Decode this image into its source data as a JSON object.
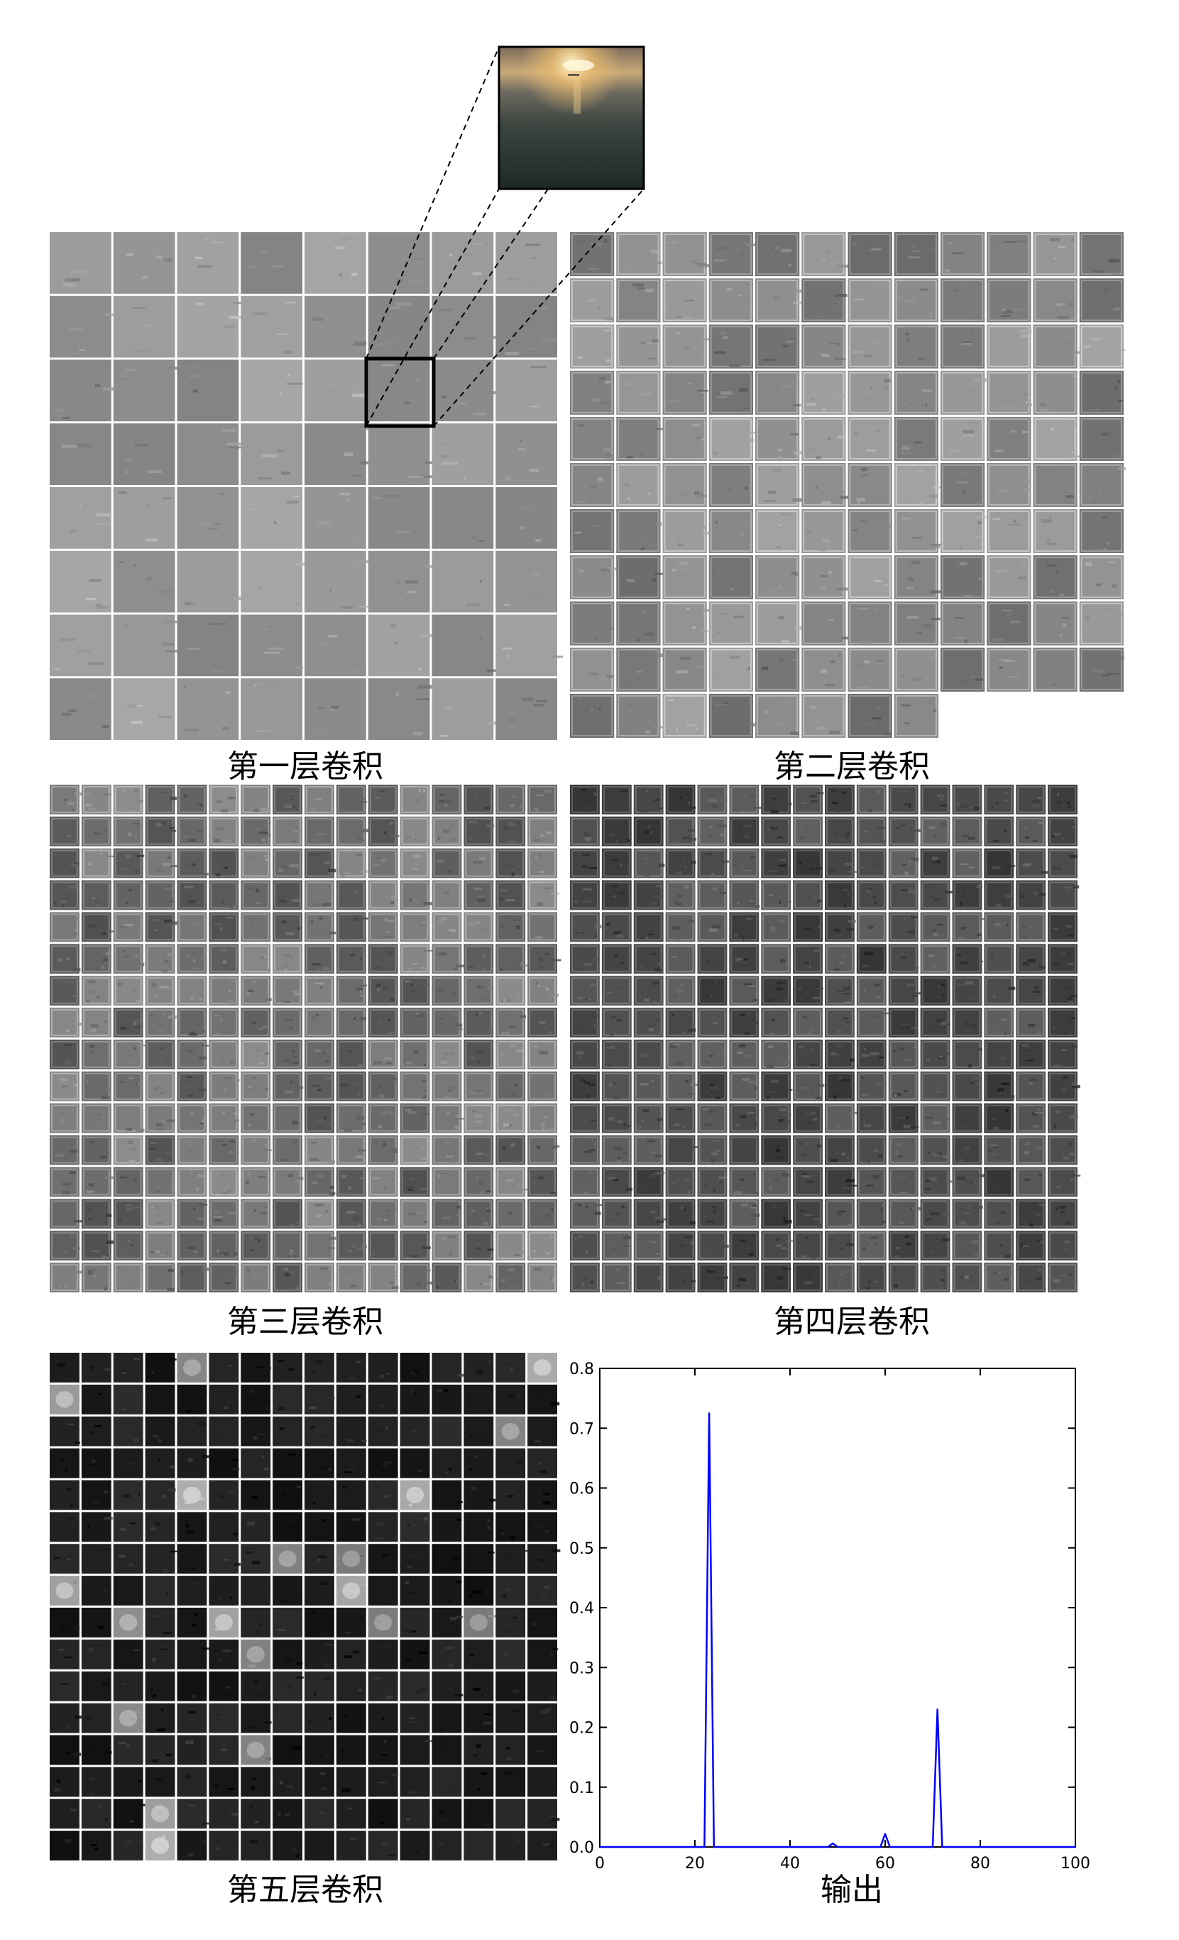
{
  "panels": [
    {
      "id": "conv1",
      "caption": "第一层卷积"
    },
    {
      "id": "conv2",
      "caption": "第二层卷积"
    },
    {
      "id": "conv3",
      "caption": "第三层卷积"
    },
    {
      "id": "conv4",
      "caption": "第四层卷积"
    },
    {
      "id": "conv5",
      "caption": "第五层卷积"
    },
    {
      "id": "output",
      "caption": "输出"
    }
  ],
  "feature_maps": {
    "conv1": {
      "rows": 8,
      "cols": 8,
      "count": 64
    },
    "conv2": {
      "rows": 11,
      "cols": 12,
      "count": 128
    },
    "conv3": {
      "rows": 16,
      "cols": 16,
      "count": 256
    },
    "conv4": {
      "rows": 16,
      "cols": 16,
      "count": 256
    },
    "conv5": {
      "rows": 16,
      "cols": 16,
      "count": 256
    }
  },
  "zoom_inset": {
    "source_panel": "conv1",
    "source_cell": {
      "row": 2,
      "col": 5
    },
    "content": "sunset-over-sea-photo"
  },
  "chart_data": {
    "type": "line",
    "xlim": [
      0,
      100
    ],
    "ylim": [
      0,
      0.8
    ],
    "x_ticks": [
      0,
      20,
      40,
      60,
      80,
      100
    ],
    "y_ticks": [
      0.0,
      0.1,
      0.2,
      0.3,
      0.4,
      0.5,
      0.6,
      0.7,
      0.8
    ],
    "y_tick_labels": [
      "0.0",
      "0.1",
      "0.2",
      "0.3",
      "0.4",
      "0.5",
      "0.6",
      "0.7",
      "0.8"
    ],
    "series": [
      {
        "color": "#0000ff",
        "points": [
          [
            0,
            0
          ],
          [
            22,
            0
          ],
          [
            23,
            0.725
          ],
          [
            24,
            0
          ],
          [
            48,
            0
          ],
          [
            49,
            0.006
          ],
          [
            50,
            0
          ],
          [
            59,
            0
          ],
          [
            60,
            0.022
          ],
          [
            61,
            0
          ],
          [
            70,
            0
          ],
          [
            71,
            0.23
          ],
          [
            72,
            0
          ],
          [
            100,
            0
          ]
        ]
      }
    ],
    "colors": {
      "line": "#0000ff",
      "axis": "#000000"
    }
  }
}
